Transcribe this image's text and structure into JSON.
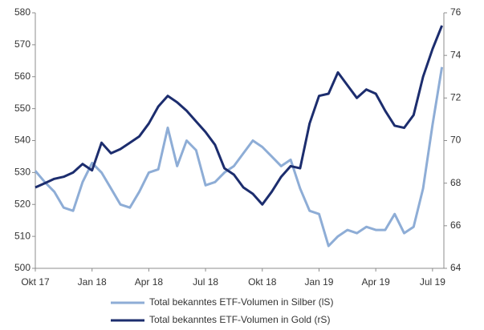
{
  "chart_data": {
    "type": "line",
    "x": [
      0,
      0.5,
      1,
      1.5,
      2,
      2.5,
      3,
      3.5,
      4,
      4.5,
      5,
      5.5,
      6,
      6.5,
      7,
      7.5,
      8,
      8.5,
      9,
      9.5,
      10,
      10.5,
      11,
      11.5,
      12,
      12.5,
      13,
      13.5,
      14,
      14.5,
      15,
      15.5,
      16,
      16.5,
      17,
      17.5,
      18,
      18.5,
      19,
      19.5,
      20,
      20.5,
      21,
      21.5
    ],
    "series": [
      {
        "name": "Total bekanntes ETF-Volumen in Silber (lS)",
        "color": "#8eadd6",
        "axis": "y",
        "values": [
          530.5,
          527,
          524,
          519,
          518,
          527,
          533,
          530,
          525,
          520,
          519,
          524,
          530,
          531,
          544,
          532,
          540,
          537,
          526,
          527,
          530,
          532,
          536,
          540,
          538,
          535,
          532,
          534,
          525,
          518,
          517,
          507,
          510,
          512,
          511,
          513,
          512,
          512,
          517,
          511,
          513,
          525,
          545,
          563
        ]
      },
      {
        "name": "Total bekanntes ETF-Volumen in Gold (rS)",
        "color": "#1c2d6e",
        "axis": "y2",
        "values": [
          67.8,
          68.0,
          68.2,
          68.3,
          68.5,
          68.9,
          68.6,
          69.9,
          69.4,
          69.6,
          69.9,
          70.2,
          70.8,
          71.6,
          72.1,
          71.8,
          71.4,
          70.9,
          70.4,
          69.8,
          68.7,
          68.4,
          67.8,
          67.5,
          67.0,
          67.6,
          68.3,
          68.8,
          68.7,
          70.8,
          72.1,
          72.2,
          73.2,
          72.6,
          72.0,
          72.4,
          72.2,
          71.4,
          70.7,
          70.6,
          71.2,
          73.0,
          74.3,
          75.4
        ]
      }
    ],
    "xlim": [
      0,
      21.6
    ],
    "xticks": [
      {
        "value": 0,
        "label": "Okt 17"
      },
      {
        "value": 3,
        "label": "Jan 18"
      },
      {
        "value": 6,
        "label": "Apr 18"
      },
      {
        "value": 9,
        "label": "Jul 18"
      },
      {
        "value": 12,
        "label": "Okt 18"
      },
      {
        "value": 15,
        "label": "Jan 19"
      },
      {
        "value": 18,
        "label": "Apr 19"
      },
      {
        "value": 21,
        "label": "Jul 19"
      }
    ],
    "ylim": [
      500,
      580
    ],
    "yticks": [
      500,
      510,
      520,
      530,
      540,
      550,
      560,
      570,
      580
    ],
    "y2lim": [
      64,
      76
    ],
    "y2ticks": [
      64,
      66,
      68,
      70,
      72,
      74,
      76
    ],
    "grid": false,
    "legend": "bottom"
  }
}
